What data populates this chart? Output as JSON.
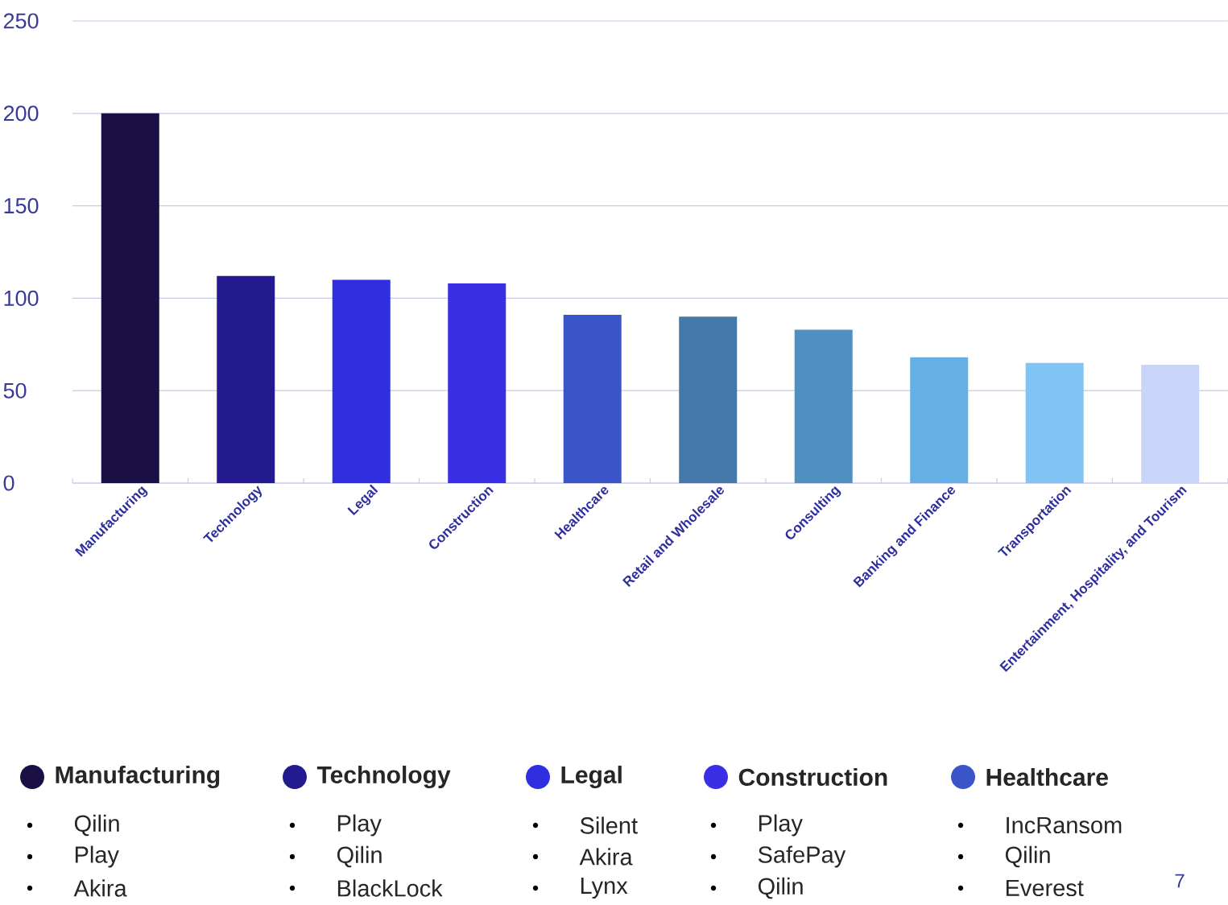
{
  "chart_data": {
    "type": "bar",
    "categories": [
      "Manufacturing",
      "Technology",
      "Legal",
      "Construction",
      "Healthcare",
      "Retail and Wholesale",
      "Consulting",
      "Banking and Finance",
      "Transportation",
      "Entertainment, Hospitality, and Tourism"
    ],
    "values": [
      200,
      112,
      110,
      108,
      91,
      90,
      83,
      68,
      65,
      64
    ],
    "colors": [
      "#1a1045",
      "#231a8f",
      "#2f2fe0",
      "#3b2fe6",
      "#3a55c8",
      "#4378a8",
      "#5090c0",
      "#64b0e6",
      "#80c4f4",
      "#c8d4f8"
    ],
    "ylim": [
      0,
      250
    ],
    "yticks": [
      0,
      50,
      100,
      150,
      200,
      250
    ],
    "grid": "y",
    "annotations": [
      "Qilin",
      "Play",
      "Akira",
      "Play",
      "Qilin",
      "BlackLock",
      "Silent",
      "Akira",
      "Lynx",
      "Play",
      "SafePay",
      "Qilin",
      "IncRansom",
      "Qilin",
      "Everest",
      "7"
    ]
  }
}
